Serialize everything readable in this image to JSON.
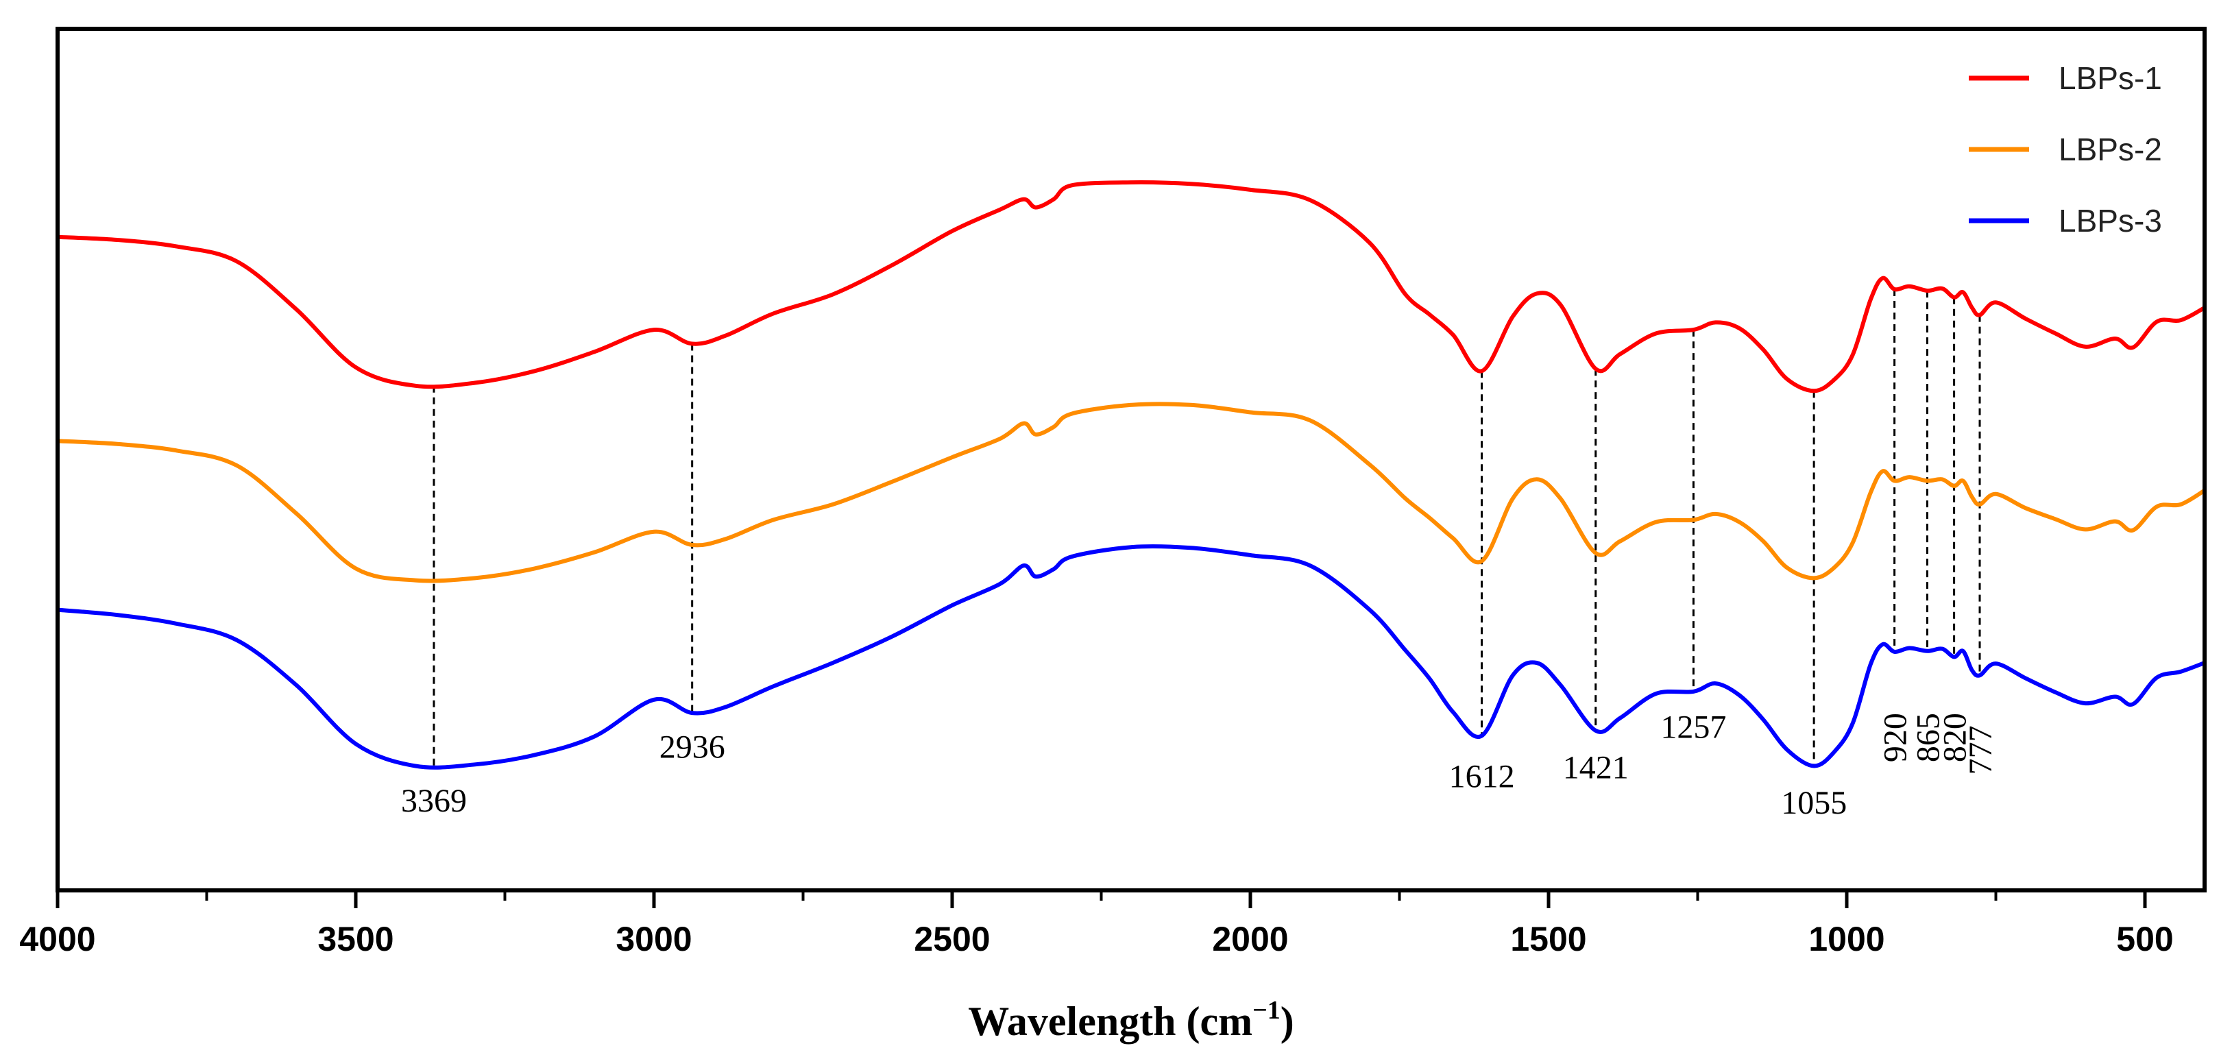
{
  "chart_data": {
    "type": "line",
    "title": "",
    "xlabel": "Wavelength (cm",
    "xlabel_sup": "−1",
    "xlabel_close": ")",
    "ylabel": "",
    "xlim": [
      4000,
      400
    ],
    "x_ticks": [
      4000,
      3500,
      3000,
      2500,
      2000,
      1500,
      1000,
      500
    ],
    "x_tick_labels": [
      "4000",
      "3500",
      "3000",
      "2500",
      "2000",
      "1500",
      "1000",
      "500"
    ],
    "ylim": [
      0,
      1
    ],
    "y_ticks_shown": false,
    "grid": false,
    "legend_position": "top-right",
    "series": [
      {
        "name": "LBPs-1",
        "color": "#ff0000",
        "points": [
          [
            4000,
            0.818
          ],
          [
            3900,
            0.814
          ],
          [
            3800,
            0.805
          ],
          [
            3700,
            0.785
          ],
          [
            3600,
            0.72
          ],
          [
            3500,
            0.641
          ],
          [
            3400,
            0.616
          ],
          [
            3300,
            0.62
          ],
          [
            3200,
            0.636
          ],
          [
            3100,
            0.662
          ],
          [
            3000,
            0.692
          ],
          [
            2936,
            0.673
          ],
          [
            2880,
            0.684
          ],
          [
            2800,
            0.714
          ],
          [
            2700,
            0.74
          ],
          [
            2600,
            0.78
          ],
          [
            2500,
            0.826
          ],
          [
            2420,
            0.855
          ],
          [
            2380,
            0.869
          ],
          [
            2360,
            0.858
          ],
          [
            2330,
            0.869
          ],
          [
            2300,
            0.888
          ],
          [
            2200,
            0.892
          ],
          [
            2100,
            0.89
          ],
          [
            2000,
            0.882
          ],
          [
            1900,
            0.868
          ],
          [
            1800,
            0.81
          ],
          [
            1740,
            0.74
          ],
          [
            1700,
            0.713
          ],
          [
            1660,
            0.685
          ],
          [
            1612,
            0.636
          ],
          [
            1560,
            0.71
          ],
          [
            1520,
            0.741
          ],
          [
            1480,
            0.726
          ],
          [
            1421,
            0.639
          ],
          [
            1380,
            0.659
          ],
          [
            1320,
            0.687
          ],
          [
            1257,
            0.692
          ],
          [
            1220,
            0.702
          ],
          [
            1180,
            0.694
          ],
          [
            1140,
            0.665
          ],
          [
            1100,
            0.625
          ],
          [
            1055,
            0.609
          ],
          [
            1020,
            0.625
          ],
          [
            990,
            0.658
          ],
          [
            960,
            0.733
          ],
          [
            940,
            0.762
          ],
          [
            920,
            0.747
          ],
          [
            895,
            0.751
          ],
          [
            865,
            0.745
          ],
          [
            840,
            0.748
          ],
          [
            820,
            0.736
          ],
          [
            805,
            0.743
          ],
          [
            790,
            0.722
          ],
          [
            777,
            0.712
          ],
          [
            750,
            0.729
          ],
          [
            700,
            0.707
          ],
          [
            650,
            0.687
          ],
          [
            600,
            0.669
          ],
          [
            550,
            0.68
          ],
          [
            520,
            0.668
          ],
          [
            480,
            0.703
          ],
          [
            440,
            0.705
          ],
          [
            400,
            0.722
          ]
        ]
      },
      {
        "name": "LBPs-2",
        "color": "#ff8c00",
        "points": [
          [
            4000,
            0.541
          ],
          [
            3900,
            0.537
          ],
          [
            3800,
            0.528
          ],
          [
            3700,
            0.508
          ],
          [
            3600,
            0.443
          ],
          [
            3500,
            0.368
          ],
          [
            3400,
            0.352
          ],
          [
            3300,
            0.355
          ],
          [
            3200,
            0.368
          ],
          [
            3100,
            0.39
          ],
          [
            3000,
            0.418
          ],
          [
            2936,
            0.4
          ],
          [
            2880,
            0.408
          ],
          [
            2800,
            0.434
          ],
          [
            2700,
            0.455
          ],
          [
            2600,
            0.486
          ],
          [
            2500,
            0.519
          ],
          [
            2420,
            0.544
          ],
          [
            2380,
            0.565
          ],
          [
            2360,
            0.55
          ],
          [
            2330,
            0.56
          ],
          [
            2300,
            0.578
          ],
          [
            2200,
            0.59
          ],
          [
            2100,
            0.59
          ],
          [
            2000,
            0.58
          ],
          [
            1900,
            0.569
          ],
          [
            1800,
            0.509
          ],
          [
            1740,
            0.463
          ],
          [
            1700,
            0.437
          ],
          [
            1660,
            0.409
          ],
          [
            1612,
            0.378
          ],
          [
            1560,
            0.463
          ],
          [
            1520,
            0.489
          ],
          [
            1480,
            0.463
          ],
          [
            1421,
            0.389
          ],
          [
            1380,
            0.405
          ],
          [
            1320,
            0.431
          ],
          [
            1257,
            0.434
          ],
          [
            1220,
            0.442
          ],
          [
            1180,
            0.431
          ],
          [
            1140,
            0.405
          ],
          [
            1100,
            0.369
          ],
          [
            1055,
            0.355
          ],
          [
            1020,
            0.37
          ],
          [
            990,
            0.403
          ],
          [
            960,
            0.471
          ],
          [
            940,
            0.5
          ],
          [
            920,
            0.487
          ],
          [
            895,
            0.492
          ],
          [
            865,
            0.487
          ],
          [
            840,
            0.489
          ],
          [
            820,
            0.48
          ],
          [
            805,
            0.487
          ],
          [
            790,
            0.465
          ],
          [
            777,
            0.455
          ],
          [
            750,
            0.469
          ],
          [
            700,
            0.45
          ],
          [
            650,
            0.435
          ],
          [
            600,
            0.421
          ],
          [
            550,
            0.432
          ],
          [
            520,
            0.42
          ],
          [
            480,
            0.452
          ],
          [
            440,
            0.455
          ],
          [
            400,
            0.474
          ]
        ]
      },
      {
        "name": "LBPs-3",
        "color": "#0000ff",
        "points": [
          [
            4000,
            0.312
          ],
          [
            3900,
            0.305
          ],
          [
            3800,
            0.293
          ],
          [
            3700,
            0.271
          ],
          [
            3600,
            0.21
          ],
          [
            3500,
            0.13
          ],
          [
            3400,
            0.1
          ],
          [
            3300,
            0.102
          ],
          [
            3200,
            0.115
          ],
          [
            3100,
            0.14
          ],
          [
            3000,
            0.19
          ],
          [
            2936,
            0.172
          ],
          [
            2880,
            0.18
          ],
          [
            2800,
            0.208
          ],
          [
            2700,
            0.24
          ],
          [
            2600,
            0.276
          ],
          [
            2500,
            0.318
          ],
          [
            2420,
            0.347
          ],
          [
            2380,
            0.372
          ],
          [
            2360,
            0.357
          ],
          [
            2330,
            0.367
          ],
          [
            2300,
            0.384
          ],
          [
            2200,
            0.397
          ],
          [
            2100,
            0.396
          ],
          [
            2000,
            0.386
          ],
          [
            1900,
            0.372
          ],
          [
            1800,
            0.312
          ],
          [
            1740,
            0.257
          ],
          [
            1700,
            0.219
          ],
          [
            1660,
            0.173
          ],
          [
            1612,
            0.141
          ],
          [
            1560,
            0.223
          ],
          [
            1520,
            0.24
          ],
          [
            1480,
            0.21
          ],
          [
            1421,
            0.148
          ],
          [
            1380,
            0.165
          ],
          [
            1320,
            0.198
          ],
          [
            1257,
            0.201
          ],
          [
            1220,
            0.212
          ],
          [
            1180,
            0.196
          ],
          [
            1140,
            0.163
          ],
          [
            1100,
            0.122
          ],
          [
            1055,
            0.1
          ],
          [
            1020,
            0.12
          ],
          [
            990,
            0.158
          ],
          [
            960,
            0.238
          ],
          [
            940,
            0.265
          ],
          [
            920,
            0.255
          ],
          [
            895,
            0.26
          ],
          [
            865,
            0.256
          ],
          [
            840,
            0.259
          ],
          [
            820,
            0.248
          ],
          [
            805,
            0.256
          ],
          [
            790,
            0.23
          ],
          [
            777,
            0.223
          ],
          [
            750,
            0.239
          ],
          [
            700,
            0.219
          ],
          [
            650,
            0.2
          ],
          [
            600,
            0.185
          ],
          [
            550,
            0.194
          ],
          [
            520,
            0.184
          ],
          [
            480,
            0.22
          ],
          [
            440,
            0.228
          ],
          [
            400,
            0.24
          ]
        ]
      }
    ],
    "peaks": [
      {
        "x": 3369,
        "label": "3369",
        "from": 0.616,
        "to": 0.1,
        "label_y": 0.055,
        "rotate": false
      },
      {
        "x": 2936,
        "label": "2936",
        "from": 0.673,
        "to": 0.172,
        "label_y": 0.128,
        "rotate": false
      },
      {
        "x": 1612,
        "label": "1612",
        "from": 0.636,
        "to": 0.141,
        "label_y": 0.088,
        "rotate": false
      },
      {
        "x": 1421,
        "label": "1421",
        "from": 0.639,
        "to": 0.148,
        "label_y": 0.1,
        "rotate": false
      },
      {
        "x": 1257,
        "label": "1257",
        "from": 0.692,
        "to": 0.201,
        "label_y": 0.155,
        "rotate": false
      },
      {
        "x": 1055,
        "label": "1055",
        "from": 0.609,
        "to": 0.1,
        "label_y": 0.052,
        "rotate": false
      },
      {
        "x": 920,
        "label": "920",
        "from": 0.747,
        "to": 0.255,
        "label_y": 0.172,
        "rotate": true
      },
      {
        "x": 865,
        "label": "865",
        "from": 0.745,
        "to": 0.256,
        "label_y": 0.172,
        "rotate": true
      },
      {
        "x": 820,
        "label": "820",
        "from": 0.736,
        "to": 0.248,
        "label_y": 0.172,
        "rotate": true
      },
      {
        "x": 777,
        "label": "777",
        "from": 0.712,
        "to": 0.223,
        "label_y": 0.155,
        "rotate": true
      }
    ]
  }
}
